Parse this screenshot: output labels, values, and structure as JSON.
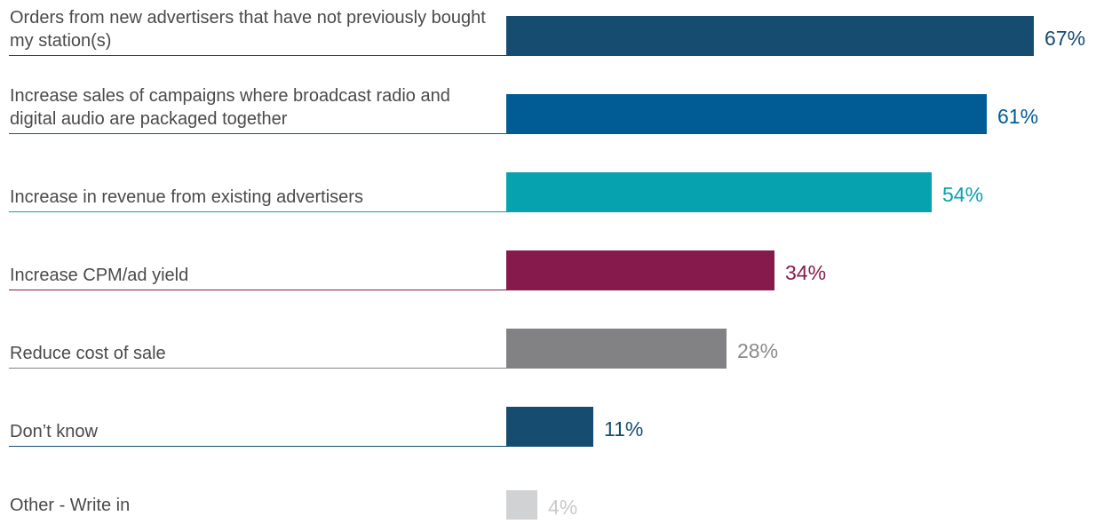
{
  "chart_data": {
    "type": "bar",
    "orientation": "horizontal",
    "categories": [
      "Orders from new advertisers that have not previously bought my station(s)",
      "Increase sales of campaigns where broadcast radio and digital audio are packaged together",
      "Increase in revenue from existing advertisers",
      "Increase CPM/ad yield",
      "Reduce cost of sale",
      "Don’t know",
      "Other - Write in"
    ],
    "values": [
      67,
      61,
      54,
      34,
      28,
      11,
      4
    ],
    "value_labels": [
      "67%",
      "61%",
      "54%",
      "34%",
      "28%",
      "11%",
      "4%"
    ],
    "colors": [
      "#154c70",
      "#015c96",
      "#07a2b0",
      "#871a4c",
      "#828285",
      "#154c70",
      "#d1d2d4"
    ],
    "label_colors": [
      "#154c70",
      "#015c96",
      "#07a2b0",
      "#871a4c",
      "#8a8a8d",
      "#154c70",
      "#c9cacc"
    ],
    "title": "",
    "xlabel": "",
    "ylabel": "",
    "xlim": [
      0,
      67
    ],
    "grid": false,
    "legend": "none"
  }
}
